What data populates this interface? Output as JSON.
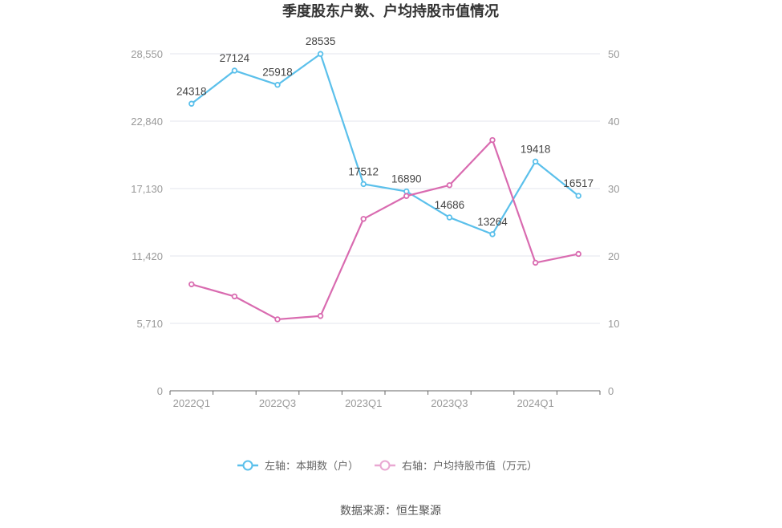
{
  "chart_data": {
    "type": "line",
    "title": "季度股东户数、户均持股市值情况",
    "categories": [
      "2022Q1",
      "2022Q2",
      "2022Q3",
      "2022Q4",
      "2023Q1",
      "2023Q2",
      "2023Q3",
      "2023Q4",
      "2024Q1",
      "2024Q2"
    ],
    "x_tick_labels": [
      "2022Q1",
      "",
      "2022Q3",
      "",
      "2023Q1",
      "",
      "2023Q3",
      "",
      "2024Q1",
      ""
    ],
    "left_axis": {
      "ylim": [
        0,
        28550
      ],
      "ticks": [
        "0",
        "5,710",
        "11,420",
        "17,130",
        "22,840",
        "28,550"
      ]
    },
    "right_axis": {
      "ylim": [
        0,
        50
      ],
      "ticks": [
        "0",
        "10",
        "20",
        "30",
        "40",
        "50"
      ]
    },
    "series": [
      {
        "name": "左轴：本期数（户）",
        "axis": "left",
        "color": "#5bc0eb",
        "values": [
          24318,
          27124,
          25918,
          28535,
          17512,
          16890,
          14686,
          13264,
          19418,
          16517
        ],
        "labels": [
          "24318",
          "27124",
          "25918",
          "28535",
          "17512",
          "16890",
          "14686",
          "13264",
          "19418",
          "16517"
        ]
      },
      {
        "name": "右轴：户均持股市值（万元）",
        "axis": "right",
        "color": "#d96bb0",
        "values": [
          15.8,
          14.0,
          10.6,
          11.1,
          25.5,
          28.9,
          30.5,
          37.2,
          19.0,
          20.3
        ]
      }
    ],
    "grid": true,
    "legend_position": "bottom"
  },
  "source": "数据来源：恒生聚源"
}
